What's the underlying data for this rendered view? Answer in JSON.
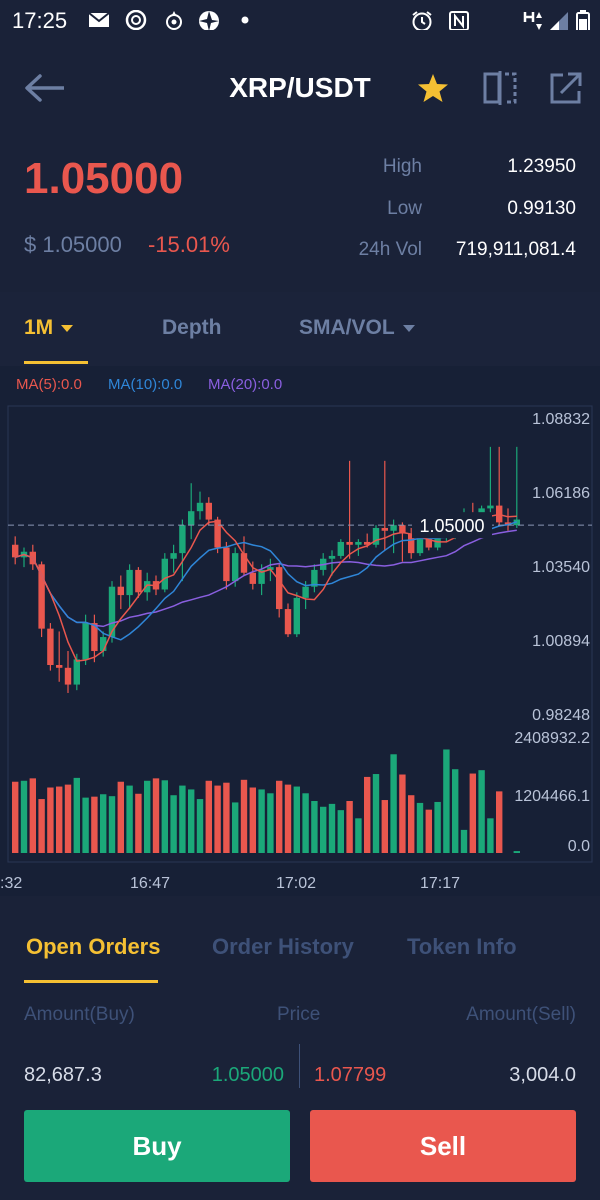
{
  "status_bar": {
    "time": "17:25"
  },
  "header": {
    "title": "XRP/USDT"
  },
  "ticker": {
    "last_price": "1.05000",
    "usd_price": "$ 1.05000",
    "change": "-15.01%",
    "high_label": "High",
    "high_value": "1.23950",
    "low_label": "Low",
    "low_value": "0.99130",
    "vol_label": "24h Vol",
    "vol_value": "719,911,081.4"
  },
  "chart_tabs": {
    "interval": "1M",
    "depth": "Depth",
    "indicator": "SMA/VOL"
  },
  "ma_legend": {
    "ma5": "MA(5):0.0",
    "ma10": "MA(10):0.0",
    "ma20": "MA(20):0.0"
  },
  "colors": {
    "up": "#1ba879",
    "down": "#e9574e",
    "ma5": "#e9574e",
    "ma10": "#2f86d8",
    "ma20": "#8a5fe0",
    "accent": "#f5c033"
  },
  "chart_data": {
    "type": "candlestick",
    "price_axis_labels": [
      "1.08832",
      "1.06186",
      "1.03540",
      "1.00894",
      "0.98248"
    ],
    "price_ylim": [
      0.98248,
      1.08832
    ],
    "current_price_label": "1.05000",
    "current_price": 1.05,
    "volume_axis_labels": [
      "2408932.2",
      "1204466.1",
      "0.0"
    ],
    "volume_ylim": [
      0,
      2408932.2
    ],
    "time_labels": [
      ":32",
      "16:47",
      "17:02",
      "17:17"
    ],
    "candles": [
      {
        "o": 1.043,
        "h": 1.046,
        "l": 1.036,
        "c": 1.0385
      },
      {
        "o": 1.0385,
        "h": 1.042,
        "l": 1.035,
        "c": 1.0405
      },
      {
        "o": 1.0405,
        "h": 1.043,
        "l": 1.034,
        "c": 1.036
      },
      {
        "o": 1.036,
        "h": 1.037,
        "l": 1.01,
        "c": 1.013
      },
      {
        "o": 1.013,
        "h": 1.015,
        "l": 0.998,
        "c": 1.0
      },
      {
        "o": 1.0,
        "h": 1.012,
        "l": 0.994,
        "c": 0.999
      },
      {
        "o": 0.999,
        "h": 1.005,
        "l": 0.99,
        "c": 0.993
      },
      {
        "o": 0.993,
        "h": 1.004,
        "l": 0.991,
        "c": 1.002
      },
      {
        "o": 1.002,
        "h": 1.018,
        "l": 1.0,
        "c": 1.015
      },
      {
        "o": 1.015,
        "h": 1.018,
        "l": 1.001,
        "c": 1.005
      },
      {
        "o": 1.005,
        "h": 1.012,
        "l": 1.003,
        "c": 1.01
      },
      {
        "o": 1.01,
        "h": 1.03,
        "l": 1.008,
        "c": 1.028
      },
      {
        "o": 1.028,
        "h": 1.032,
        "l": 1.02,
        "c": 1.025
      },
      {
        "o": 1.025,
        "h": 1.036,
        "l": 1.02,
        "c": 1.034
      },
      {
        "o": 1.034,
        "h": 1.035,
        "l": 1.024,
        "c": 1.026
      },
      {
        "o": 1.026,
        "h": 1.033,
        "l": 1.023,
        "c": 1.03
      },
      {
        "o": 1.03,
        "h": 1.032,
        "l": 1.025,
        "c": 1.027
      },
      {
        "o": 1.027,
        "h": 1.04,
        "l": 1.026,
        "c": 1.038
      },
      {
        "o": 1.038,
        "h": 1.043,
        "l": 1.033,
        "c": 1.04
      },
      {
        "o": 1.04,
        "h": 1.052,
        "l": 1.03,
        "c": 1.05
      },
      {
        "o": 1.05,
        "h": 1.065,
        "l": 1.045,
        "c": 1.055
      },
      {
        "o": 1.055,
        "h": 1.062,
        "l": 1.052,
        "c": 1.058
      },
      {
        "o": 1.058,
        "h": 1.06,
        "l": 1.05,
        "c": 1.052
      },
      {
        "o": 1.052,
        "h": 1.053,
        "l": 1.04,
        "c": 1.042
      },
      {
        "o": 1.042,
        "h": 1.044,
        "l": 1.027,
        "c": 1.03
      },
      {
        "o": 1.03,
        "h": 1.042,
        "l": 1.028,
        "c": 1.04
      },
      {
        "o": 1.04,
        "h": 1.046,
        "l": 1.032,
        "c": 1.033
      },
      {
        "o": 1.033,
        "h": 1.037,
        "l": 1.027,
        "c": 1.029
      },
      {
        "o": 1.029,
        "h": 1.036,
        "l": 1.025,
        "c": 1.034
      },
      {
        "o": 1.034,
        "h": 1.038,
        "l": 1.03,
        "c": 1.035
      },
      {
        "o": 1.035,
        "h": 1.036,
        "l": 1.017,
        "c": 1.02
      },
      {
        "o": 1.02,
        "h": 1.022,
        "l": 1.01,
        "c": 1.011
      },
      {
        "o": 1.011,
        "h": 1.026,
        "l": 1.01,
        "c": 1.024
      },
      {
        "o": 1.024,
        "h": 1.03,
        "l": 1.02,
        "c": 1.028
      },
      {
        "o": 1.028,
        "h": 1.036,
        "l": 1.026,
        "c": 1.034
      },
      {
        "o": 1.034,
        "h": 1.04,
        "l": 1.032,
        "c": 1.038
      },
      {
        "o": 1.038,
        "h": 1.041,
        "l": 1.032,
        "c": 1.039
      },
      {
        "o": 1.039,
        "h": 1.045,
        "l": 1.038,
        "c": 1.044
      },
      {
        "o": 1.044,
        "h": 1.073,
        "l": 1.038,
        "c": 1.043
      },
      {
        "o": 1.043,
        "h": 1.045,
        "l": 1.039,
        "c": 1.044
      },
      {
        "o": 1.044,
        "h": 1.047,
        "l": 1.042,
        "c": 1.043
      },
      {
        "o": 1.043,
        "h": 1.05,
        "l": 1.042,
        "c": 1.049
      },
      {
        "o": 1.049,
        "h": 1.073,
        "l": 1.041,
        "c": 1.048
      },
      {
        "o": 1.048,
        "h": 1.052,
        "l": 1.04,
        "c": 1.05
      },
      {
        "o": 1.05,
        "h": 1.051,
        "l": 1.037,
        "c": 1.047
      },
      {
        "o": 1.047,
        "h": 1.049,
        "l": 1.038,
        "c": 1.04
      },
      {
        "o": 1.04,
        "h": 1.046,
        "l": 1.039,
        "c": 1.045
      },
      {
        "o": 1.045,
        "h": 1.047,
        "l": 1.041,
        "c": 1.042
      },
      {
        "o": 1.042,
        "h": 1.048,
        "l": 1.041,
        "c": 1.046
      },
      {
        "o": 1.046,
        "h": 1.049,
        "l": 1.044,
        "c": 1.047
      },
      {
        "o": 1.047,
        "h": 1.051,
        "l": 1.045,
        "c": 1.048
      },
      {
        "o": 1.048,
        "h": 1.056,
        "l": 1.047,
        "c": 1.054
      },
      {
        "o": 1.054,
        "h": 1.058,
        "l": 1.05,
        "c": 1.051
      },
      {
        "o": 1.051,
        "h": 1.057,
        "l": 1.049,
        "c": 1.056
      },
      {
        "o": 1.056,
        "h": 1.078,
        "l": 1.05,
        "c": 1.057
      },
      {
        "o": 1.057,
        "h": 1.078,
        "l": 1.05,
        "c": 1.051
      },
      {
        "o": 1.051,
        "h": 1.056,
        "l": 1.048,
        "c": 1.05
      },
      {
        "o": 1.05,
        "h": 1.078,
        "l": 1.049,
        "c": 1.052
      }
    ],
    "volumes": [
      1480000,
      1500000,
      1550000,
      1120000,
      1360000,
      1380000,
      1420000,
      1560000,
      1150000,
      1170000,
      1220000,
      1180000,
      1480000,
      1400000,
      1230000,
      1500000,
      1550000,
      1510000,
      1200000,
      1400000,
      1320000,
      1120000,
      1500000,
      1400000,
      1460000,
      1050000,
      1520000,
      1360000,
      1320000,
      1240000,
      1500000,
      1420000,
      1380000,
      1240000,
      1080000,
      960000,
      1020000,
      890000,
      1080000,
      720000,
      1580000,
      1640000,
      1100000,
      2050000,
      1630000,
      1200000,
      1040000,
      900000,
      1060000,
      2150000,
      1740000,
      480000,
      1650000,
      1720000,
      720000,
      1280000,
      0,
      40000
    ]
  },
  "order_tabs": {
    "open": "Open Orders",
    "history": "Order History",
    "info": "Token Info"
  },
  "order_table": {
    "col_buy": "Amount(Buy)",
    "col_price": "Price",
    "col_sell": "Amount(Sell)",
    "buy_amount": "82,687.3",
    "buy_price": "1.05000",
    "sell_price": "1.07799",
    "sell_amount": "3,004.0"
  },
  "actions": {
    "buy": "Buy",
    "sell": "Sell"
  }
}
